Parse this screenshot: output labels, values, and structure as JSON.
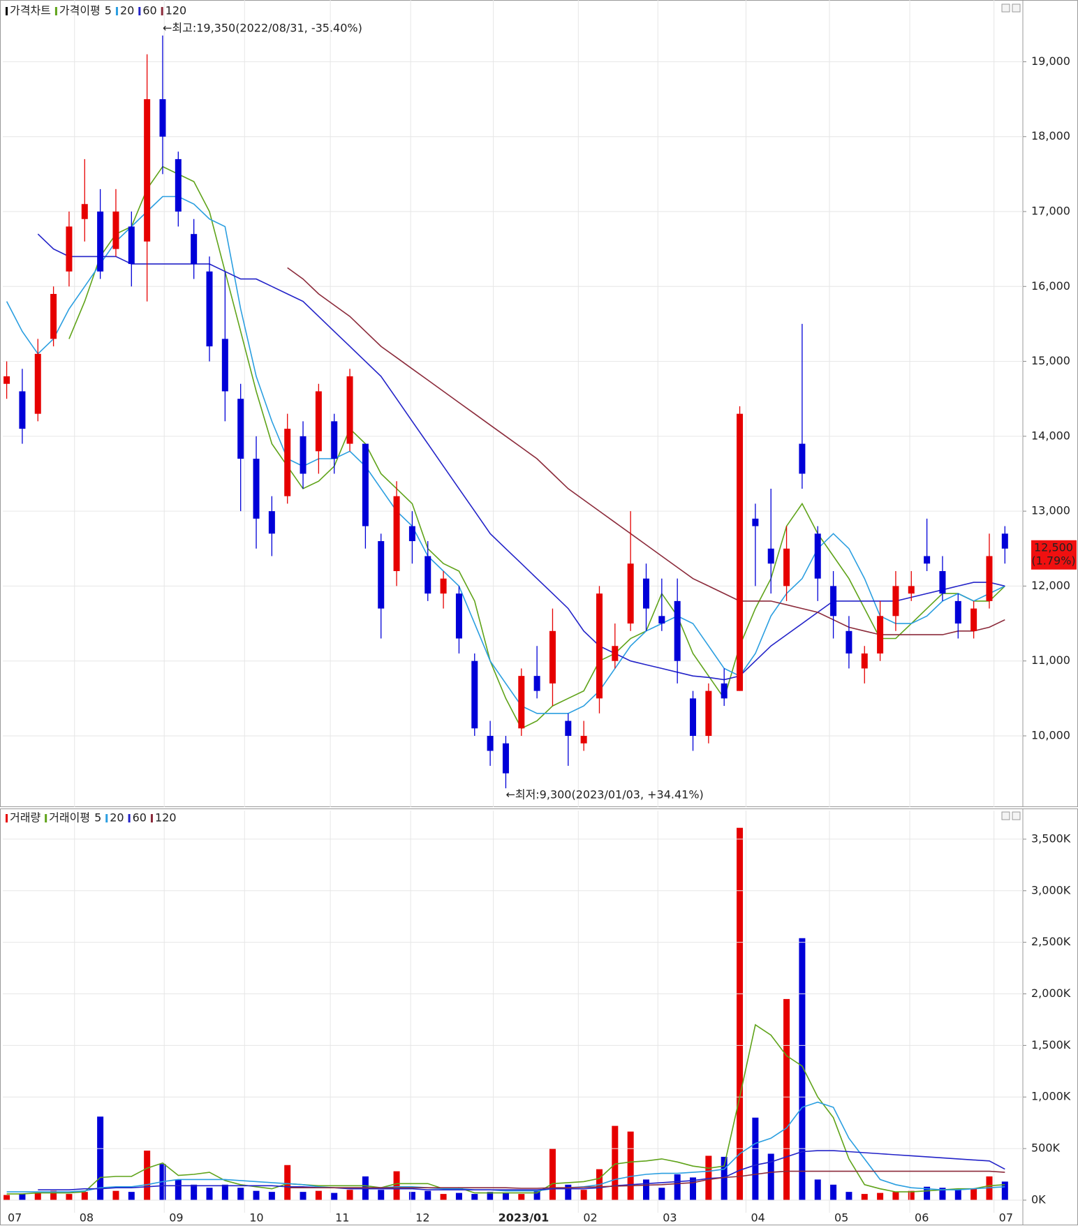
{
  "chart_data": [
    {
      "type": "candlestick",
      "legend": {
        "price": "가격차트",
        "ma": "가격이평"
      },
      "open": [
        14700,
        14600,
        14300,
        15300,
        16200,
        16900,
        17000,
        16500,
        16800,
        16600,
        18500,
        17700,
        16700,
        16200,
        15300,
        14500,
        13700,
        13000,
        13200,
        14000,
        13800,
        14200,
        13900,
        13900,
        12600,
        12200,
        12800,
        12400,
        11900,
        11900,
        11000,
        10000,
        9900,
        10100,
        10800,
        10700,
        10200,
        9900,
        10500,
        11000,
        11500,
        12100,
        11600,
        11800,
        10500,
        10000,
        10700,
        10600,
        12900,
        12500,
        12000,
        13900,
        12700,
        12000,
        11400,
        10900,
        11100,
        11600,
        11900,
        12400,
        12200,
        11800,
        11400,
        11800,
        12700
      ],
      "high": [
        15000,
        14900,
        15300,
        16000,
        17000,
        17700,
        17300,
        17300,
        17000,
        19100,
        19350,
        17800,
        16900,
        16400,
        16200,
        14700,
        14000,
        13200,
        14300,
        14200,
        14700,
        14300,
        14900,
        13900,
        12700,
        13400,
        13000,
        12600,
        12200,
        12000,
        11100,
        10200,
        10000,
        10900,
        11200,
        11700,
        10300,
        10200,
        12000,
        11500,
        13000,
        12300,
        12100,
        12100,
        10600,
        10700,
        10900,
        14400,
        13100,
        13300,
        12800,
        15500,
        12800,
        12200,
        11600,
        11200,
        11800,
        12200,
        12200,
        12900,
        12400,
        11900,
        11800,
        12700,
        12800
      ],
      "low": [
        14500,
        13900,
        14200,
        15200,
        16000,
        16600,
        16100,
        16400,
        16000,
        15800,
        17500,
        16800,
        16100,
        15000,
        14200,
        13000,
        12500,
        12400,
        13100,
        13300,
        13500,
        13500,
        13800,
        12500,
        11300,
        12000,
        12300,
        11800,
        11700,
        11100,
        10000,
        9600,
        9300,
        10000,
        10500,
        10400,
        9600,
        9800,
        10300,
        10900,
        11400,
        11400,
        11400,
        10700,
        9800,
        9900,
        10400,
        10600,
        12000,
        11900,
        11800,
        13300,
        11800,
        11300,
        10900,
        10700,
        11000,
        11400,
        11800,
        12200,
        11800,
        11300,
        11300,
        11700,
        12300
      ],
      "close": [
        14800,
        14100,
        15100,
        15900,
        16800,
        17100,
        16200,
        17000,
        16300,
        18500,
        18000,
        17000,
        16300,
        15200,
        14600,
        13700,
        12900,
        12700,
        14100,
        13500,
        14600,
        13700,
        14800,
        12800,
        11700,
        13200,
        12600,
        11900,
        12100,
        11300,
        10100,
        9800,
        9500,
        10800,
        10600,
        11400,
        10000,
        10000,
        11900,
        11200,
        12300,
        11700,
        11500,
        11000,
        10000,
        10600,
        10500,
        14300,
        12800,
        12300,
        12500,
        13500,
        12100,
        11600,
        11100,
        11100,
        11600,
        12000,
        12000,
        12300,
        11900,
        11500,
        11700,
        12400,
        12500
      ],
      "up_color": "#e60000",
      "down_color": "#0000d8",
      "series": [
        {
          "name": "5",
          "color": "#5fa319",
          "values": [
            null,
            null,
            null,
            null,
            15300,
            15800,
            16400,
            16700,
            16800,
            17300,
            17600,
            17500,
            17400,
            17000,
            16200,
            15400,
            14600,
            13900,
            13600,
            13300,
            13400,
            13600,
            14100,
            13900,
            13500,
            13300,
            13100,
            12500,
            12300,
            12200,
            11800,
            11000,
            10500,
            10100,
            10200,
            10400,
            10500,
            10600,
            11000,
            11100,
            11300,
            11400,
            11900,
            11600,
            11100,
            10800,
            10500,
            11200,
            11700,
            12100,
            12800,
            13100,
            12700,
            12400,
            12100,
            11700,
            11300,
            11300,
            11500,
            11700,
            11900,
            11900,
            11800,
            11800,
            12000
          ]
        },
        {
          "name": "20",
          "color": "#2a9ee0",
          "values": [
            15800,
            15400,
            15100,
            15300,
            15700,
            16000,
            16300,
            16600,
            16800,
            17000,
            17200,
            17200,
            17100,
            16900,
            16800,
            15700,
            14800,
            14200,
            13700,
            13600,
            13700,
            13700,
            13800,
            13600,
            13300,
            13000,
            12800,
            12400,
            12200,
            12000,
            11500,
            11000,
            10700,
            10400,
            10300,
            10300,
            10300,
            10400,
            10600,
            10900,
            11200,
            11400,
            11500,
            11600,
            11500,
            11200,
            10900,
            10800,
            11100,
            11600,
            11900,
            12100,
            12500,
            12700,
            12500,
            12100,
            11600,
            11500,
            11500,
            11600,
            11800,
            11900,
            11800,
            11900,
            12000
          ]
        },
        {
          "name": "60",
          "color": "#2222c8",
          "values": [
            null,
            null,
            16700,
            16500,
            16400,
            16400,
            16400,
            16400,
            16300,
            16300,
            16300,
            16300,
            16300,
            16300,
            16200,
            16100,
            16100,
            16000,
            15900,
            15800,
            15600,
            15400,
            15200,
            15000,
            14800,
            14500,
            14200,
            13900,
            13600,
            13300,
            13000,
            12700,
            12500,
            12300,
            12100,
            11900,
            11700,
            11400,
            11200,
            11100,
            11000,
            10950,
            10900,
            10850,
            10800,
            10780,
            10750,
            10800,
            11000,
            11200,
            11350,
            11500,
            11650,
            11800,
            11800,
            11800,
            11800,
            11800,
            11850,
            11900,
            11950,
            12000,
            12050,
            12050,
            12000
          ]
        },
        {
          "name": "120",
          "color": "#8b2a3a",
          "values": [
            null,
            null,
            null,
            null,
            null,
            null,
            null,
            null,
            null,
            null,
            null,
            null,
            null,
            null,
            null,
            null,
            null,
            null,
            16250,
            16100,
            15900,
            15750,
            15600,
            15400,
            15200,
            15050,
            14900,
            14750,
            14600,
            14450,
            14300,
            14150,
            14000,
            13850,
            13700,
            13500,
            13300,
            13150,
            13000,
            12850,
            12700,
            12550,
            12400,
            12250,
            12100,
            12000,
            11900,
            11800,
            11800,
            11800,
            11750,
            11700,
            11650,
            11550,
            11450,
            11400,
            11350,
            11350,
            11350,
            11350,
            11350,
            11400,
            11400,
            11450,
            11550
          ]
        }
      ],
      "xlim": [
        -0.25,
        65.15
      ],
      "ylim": [
        9105,
        19787
      ],
      "yticks": [
        {
          "value": 10000,
          "label": "10,000"
        },
        {
          "value": 11000,
          "label": "11,000"
        },
        {
          "value": 12000,
          "label": "12,000"
        },
        {
          "value": 13000,
          "label": "13,000"
        },
        {
          "value": 14000,
          "label": "14,000"
        },
        {
          "value": 15000,
          "label": "15,000"
        },
        {
          "value": 16000,
          "label": "16,000"
        },
        {
          "value": 17000,
          "label": "17,000"
        },
        {
          "value": 18000,
          "label": "18,000"
        },
        {
          "value": 19000,
          "label": "19,000"
        }
      ],
      "grid": true,
      "high_label": "←최고:19,350(2022/08/31, -35.40%)",
      "low_label": "←최저:9,300(2023/01/03, +34.41%)",
      "last_price_label": "12,500",
      "last_change_label": "(1.79%)"
    },
    {
      "type": "bar",
      "legend": {
        "volume": "거래량",
        "ma": "거래이평"
      },
      "values": [
        50,
        60,
        70,
        90,
        60,
        80,
        810,
        90,
        80,
        480,
        350,
        200,
        150,
        120,
        150,
        120,
        90,
        80,
        340,
        80,
        90,
        70,
        100,
        230,
        100,
        280,
        80,
        90,
        60,
        70,
        60,
        80,
        70,
        60,
        90,
        500,
        150,
        100,
        300,
        720,
        665,
        200,
        120,
        250,
        220,
        430,
        420,
        3610,
        800,
        450,
        1950,
        2540,
        200,
        150,
        80,
        60,
        70,
        80,
        90,
        130,
        120,
        100,
        110,
        230,
        180
      ],
      "series": [
        {
          "name": "5",
          "color": "#5fa319",
          "values": [
            60,
            60,
            70,
            70,
            70,
            80,
            220,
            230,
            230,
            310,
            360,
            240,
            250,
            270,
            190,
            150,
            130,
            110,
            160,
            150,
            140,
            140,
            140,
            140,
            120,
            160,
            160,
            160,
            110,
            120,
            70,
            70,
            70,
            70,
            70,
            160,
            170,
            180,
            210,
            350,
            370,
            380,
            400,
            370,
            330,
            310,
            330,
            1000,
            1700,
            1600,
            1400,
            1300,
            1000,
            800,
            400,
            150,
            110,
            80,
            80,
            90,
            100,
            110,
            110,
            140,
            150
          ]
        },
        {
          "name": "20",
          "color": "#2a9ee0",
          "values": [
            80,
            80,
            80,
            80,
            80,
            90,
            120,
            130,
            130,
            150,
            180,
            200,
            200,
            200,
            200,
            190,
            180,
            170,
            160,
            150,
            130,
            120,
            120,
            120,
            120,
            130,
            130,
            120,
            110,
            110,
            100,
            100,
            90,
            90,
            90,
            110,
            120,
            130,
            150,
            200,
            230,
            250,
            260,
            260,
            270,
            280,
            300,
            450,
            550,
            600,
            700,
            900,
            950,
            900,
            600,
            400,
            200,
            150,
            120,
            110,
            100,
            100,
            110,
            120,
            130
          ]
        },
        {
          "name": "60",
          "color": "#2222c8",
          "values": [
            null,
            null,
            100,
            100,
            100,
            110,
            110,
            120,
            120,
            130,
            140,
            140,
            140,
            140,
            140,
            140,
            140,
            140,
            130,
            130,
            120,
            120,
            110,
            110,
            110,
            110,
            110,
            100,
            100,
            100,
            100,
            100,
            100,
            100,
            100,
            110,
            110,
            110,
            120,
            140,
            150,
            160,
            170,
            180,
            190,
            210,
            220,
            290,
            340,
            370,
            420,
            470,
            480,
            480,
            470,
            460,
            450,
            440,
            430,
            420,
            410,
            400,
            390,
            380,
            300
          ]
        },
        {
          "name": "120",
          "color": "#8b2a3a",
          "values": [
            null,
            null,
            null,
            null,
            null,
            null,
            null,
            null,
            null,
            null,
            null,
            null,
            null,
            null,
            null,
            null,
            null,
            null,
            120,
            120,
            120,
            120,
            120,
            120,
            120,
            120,
            120,
            120,
            120,
            120,
            120,
            120,
            120,
            115,
            115,
            120,
            120,
            125,
            130,
            135,
            140,
            145,
            150,
            160,
            170,
            200,
            220,
            230,
            250,
            270,
            280,
            280,
            280,
            280,
            280,
            280,
            280,
            280,
            280,
            280,
            280,
            280,
            280,
            280,
            270
          ]
        }
      ],
      "xlim": [
        -0.25,
        65.15
      ],
      "ylim": [
        -95,
        3750
      ],
      "yticks": [
        {
          "value": 0,
          "label": "0K"
        },
        {
          "value": 500,
          "label": "500K"
        },
        {
          "value": 1000,
          "label": "1,000K"
        },
        {
          "value": 1500,
          "label": "1,500K"
        },
        {
          "value": 2000,
          "label": "2,000K"
        },
        {
          "value": 2500,
          "label": "2,500K"
        },
        {
          "value": 3000,
          "label": "3,000K"
        },
        {
          "value": 3500,
          "label": "3,500K"
        }
      ],
      "xticks": [
        {
          "value": -0.25,
          "label": "07"
        },
        {
          "value": 4.35,
          "label": "08"
        },
        {
          "value": 10.1,
          "label": "09"
        },
        {
          "value": 15.25,
          "label": "10"
        },
        {
          "value": 20.75,
          "label": "11"
        },
        {
          "value": 25.9,
          "label": "12"
        },
        {
          "value": 31.2,
          "label": "2023/01"
        },
        {
          "value": 36.65,
          "label": "02"
        },
        {
          "value": 41.75,
          "label": "03"
        },
        {
          "value": 47.4,
          "label": "04"
        },
        {
          "value": 52.75,
          "label": "05"
        },
        {
          "value": 57.9,
          "label": "06"
        },
        {
          "value": 63.3,
          "label": "07"
        }
      ],
      "grid": true
    }
  ]
}
